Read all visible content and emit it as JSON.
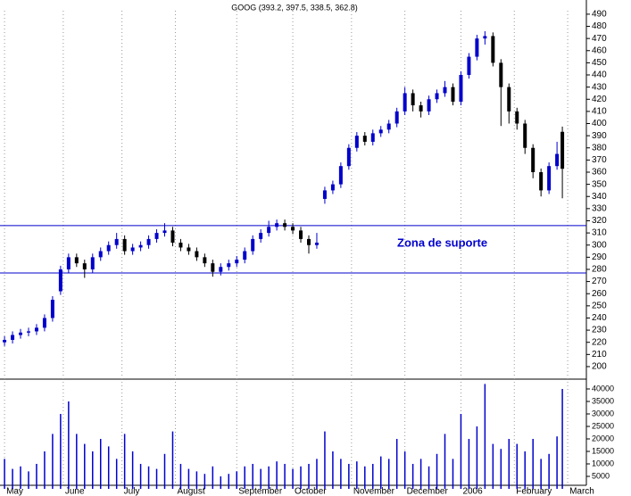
{
  "chart_data": {
    "type": "candlestick",
    "title": "GOOG (393.2, 397.5, 338.5, 362.8)",
    "annotation": "Zona de suporte",
    "support_lines": [
      316,
      277
    ],
    "up_color": "#0000cc",
    "down_color": "#000000",
    "volume_color": "#0000cc",
    "line_color": "#0000cc",
    "xlim": [
      -1.7,
      218
    ],
    "xticks": [
      {
        "value": 0,
        "label": "May"
      },
      {
        "value": 22,
        "label": "June"
      },
      {
        "value": 44,
        "label": "July"
      },
      {
        "value": 64,
        "label": "August"
      },
      {
        "value": 87,
        "label": "September"
      },
      {
        "value": 108,
        "label": "October"
      },
      {
        "value": 130,
        "label": "November"
      },
      {
        "value": 150,
        "label": "December"
      },
      {
        "value": 171,
        "label": "2006"
      },
      {
        "value": 191,
        "label": "February"
      },
      {
        "value": 211,
        "label": "March"
      }
    ],
    "ylim": [
      196,
      498
    ],
    "yticks": [
      200,
      210,
      220,
      230,
      240,
      250,
      260,
      270,
      280,
      290,
      300,
      310,
      320,
      330,
      340,
      350,
      360,
      370,
      380,
      390,
      400,
      410,
      420,
      430,
      440,
      450,
      460,
      470,
      480,
      490
    ],
    "vol_ylim": [
      0,
      42000
    ],
    "vol_ticks": [
      5000,
      10000,
      15000,
      20000,
      25000,
      30000,
      35000,
      40000
    ],
    "x": [
      0,
      3,
      6,
      9,
      12,
      15,
      18,
      21,
      24,
      27,
      30,
      33,
      36,
      39,
      42,
      45,
      48,
      51,
      54,
      57,
      60,
      63,
      66,
      69,
      72,
      75,
      78,
      81,
      84,
      87,
      90,
      93,
      96,
      99,
      102,
      105,
      108,
      111,
      114,
      117,
      120,
      123,
      126,
      129,
      132,
      135,
      138,
      141,
      144,
      147,
      150,
      153,
      156,
      159,
      162,
      165,
      168,
      171,
      174,
      177,
      180,
      183,
      186,
      189,
      192,
      195,
      198,
      201,
      204,
      207,
      209
    ],
    "open": [
      220,
      222,
      226,
      228,
      229,
      232,
      240,
      262,
      280,
      290,
      285,
      280,
      290,
      295,
      300,
      305,
      295,
      298,
      300,
      305,
      310,
      312,
      302,
      298,
      295,
      290,
      285,
      278,
      282,
      285,
      288,
      295,
      305,
      310,
      315,
      318,
      315,
      312,
      305,
      300,
      338,
      345,
      350,
      365,
      380,
      390,
      385,
      392,
      395,
      400,
      410,
      425,
      415,
      410,
      420,
      425,
      430,
      418,
      440,
      455,
      470,
      472,
      450,
      430,
      410,
      400,
      380,
      360,
      345,
      365,
      393.2
    ],
    "high": [
      225,
      229,
      231,
      232,
      235,
      243,
      258,
      283,
      293,
      293,
      288,
      293,
      298,
      303,
      310,
      308,
      301,
      303,
      308,
      313,
      318,
      315,
      305,
      301,
      298,
      293,
      288,
      285,
      288,
      291,
      298,
      308,
      313,
      320,
      321,
      321,
      318,
      315,
      308,
      310,
      348,
      353,
      368,
      383,
      393,
      393,
      395,
      398,
      403,
      413,
      430,
      428,
      418,
      423,
      428,
      435,
      433,
      443,
      458,
      473,
      476,
      475,
      453,
      433,
      413,
      403,
      383,
      363,
      368,
      385,
      397.5
    ],
    "low": [
      217,
      219,
      223,
      225,
      226,
      229,
      237,
      259,
      277,
      282,
      273,
      277,
      287,
      292,
      297,
      292,
      292,
      295,
      297,
      302,
      307,
      299,
      295,
      292,
      287,
      282,
      274,
      275,
      279,
      282,
      285,
      292,
      302,
      307,
      312,
      312,
      309,
      302,
      293,
      297,
      334,
      342,
      347,
      362,
      377,
      382,
      382,
      389,
      392,
      397,
      407,
      410,
      405,
      407,
      417,
      422,
      415,
      415,
      437,
      452,
      465,
      447,
      398,
      400,
      395,
      375,
      355,
      340,
      342,
      362,
      338.5
    ],
    "close": [
      222,
      226,
      228,
      229,
      232,
      240,
      255,
      280,
      290,
      285,
      280,
      290,
      295,
      300,
      305,
      295,
      298,
      300,
      305,
      310,
      312,
      302,
      298,
      295,
      290,
      285,
      278,
      282,
      285,
      288,
      295,
      305,
      310,
      315,
      318,
      315,
      312,
      305,
      300,
      302,
      345,
      350,
      365,
      380,
      390,
      385,
      392,
      395,
      400,
      410,
      425,
      415,
      410,
      420,
      425,
      430,
      418,
      440,
      455,
      470,
      472,
      450,
      430,
      410,
      400,
      380,
      360,
      345,
      365,
      375,
      362.8
    ],
    "volume": [
      12000,
      8000,
      9000,
      7000,
      10000,
      15000,
      22000,
      30000,
      35000,
      22000,
      18000,
      15000,
      20000,
      17000,
      12000,
      22000,
      15000,
      10000,
      9000,
      8000,
      14000,
      23000,
      10000,
      8000,
      7000,
      6000,
      9000,
      5000,
      6000,
      7000,
      9000,
      10000,
      8000,
      9000,
      11000,
      10000,
      8000,
      9000,
      10000,
      12000,
      23000,
      15000,
      12000,
      10000,
      11000,
      9000,
      10000,
      13000,
      12000,
      20000,
      15000,
      10000,
      12000,
      9000,
      14000,
      22000,
      12000,
      30000,
      20000,
      25000,
      42000,
      18000,
      16000,
      20000,
      18000,
      15000,
      20000,
      12000,
      14000,
      21000,
      40000
    ]
  }
}
